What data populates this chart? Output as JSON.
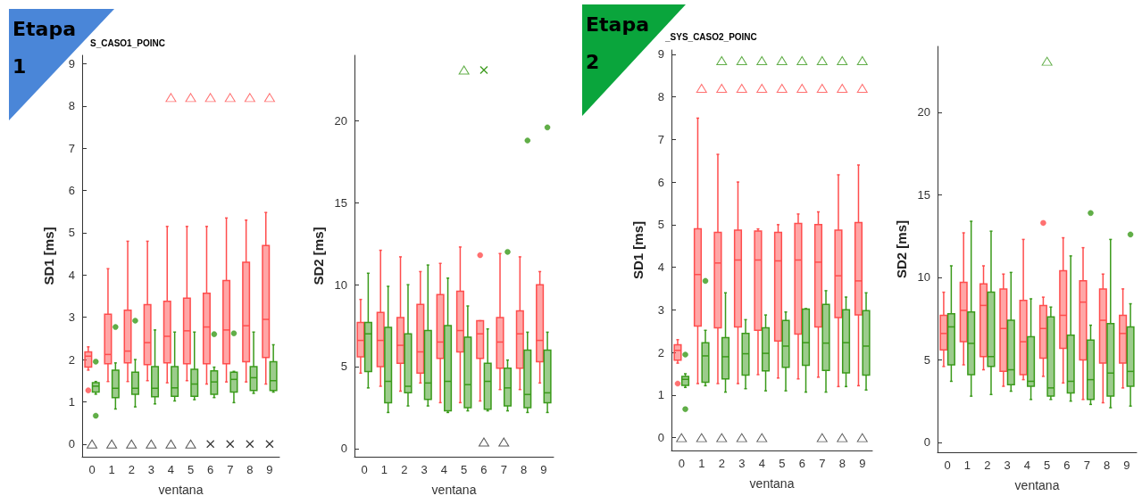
{
  "chart_data": [
    {
      "type": "box",
      "title": "S_CASO1_POINC",
      "annotations": [
        "Etapa 1"
      ],
      "xlabel": "ventana",
      "ylabel": "SD1 [ms]",
      "categories": [
        "0",
        "1",
        "2",
        "3",
        "4",
        "5",
        "6",
        "7",
        "8",
        "9"
      ],
      "ylim": [
        -0.3,
        9.2
      ],
      "yticks": [
        0,
        1,
        2,
        3,
        4,
        5,
        6,
        7,
        8,
        9
      ],
      "series": [
        {
          "color": "#ff4d4d",
          "boxes": [
            {
              "low": 1.75,
              "q1": 1.82,
              "median": 2.08,
              "q3": 2.18,
              "high": 2.3,
              "outliers": [
                1.27
              ]
            },
            {
              "low": 1.48,
              "q1": 1.9,
              "median": 2.12,
              "q3": 3.07,
              "high": 4.15
            },
            {
              "low": 1.48,
              "q1": 1.92,
              "median": 2.2,
              "q3": 3.17,
              "high": 4.8
            },
            {
              "low": 1.5,
              "q1": 1.88,
              "median": 2.4,
              "q3": 3.3,
              "high": 4.8
            },
            {
              "low": 1.45,
              "q1": 1.92,
              "median": 2.55,
              "q3": 3.38,
              "high": 5.15
            },
            {
              "low": 1.5,
              "q1": 1.9,
              "median": 2.68,
              "q3": 3.45,
              "high": 5.15
            },
            {
              "low": 1.42,
              "q1": 1.9,
              "median": 2.77,
              "q3": 3.57,
              "high": 5.15
            },
            {
              "low": 1.47,
              "q1": 1.9,
              "median": 2.7,
              "q3": 3.87,
              "high": 5.35
            },
            {
              "low": 1.47,
              "q1": 1.95,
              "median": 2.8,
              "q3": 4.3,
              "high": 5.3
            },
            {
              "low": 1.42,
              "q1": 2.05,
              "median": 2.95,
              "q3": 4.7,
              "high": 5.48
            }
          ]
        },
        {
          "color": "#3a9a1a",
          "boxes": [
            {
              "low": 1.18,
              "q1": 1.23,
              "median": 1.37,
              "q3": 1.45,
              "high": 1.48,
              "outliers": [
                1.95,
                0.67
              ]
            },
            {
              "low": 0.83,
              "q1": 1.1,
              "median": 1.32,
              "q3": 1.75,
              "high": 1.92,
              "outliers": [
                2.77
              ]
            },
            {
              "low": 0.88,
              "q1": 1.18,
              "median": 1.32,
              "q3": 1.7,
              "high": 2.0,
              "outliers": [
                2.92
              ]
            },
            {
              "low": 0.95,
              "q1": 1.12,
              "median": 1.32,
              "q3": 1.83,
              "high": 2.7
            },
            {
              "low": 1.02,
              "q1": 1.13,
              "median": 1.33,
              "q3": 1.83,
              "high": 2.65
            },
            {
              "low": 1.05,
              "q1": 1.13,
              "median": 1.42,
              "q3": 1.77,
              "high": 2.65
            },
            {
              "low": 1.1,
              "q1": 1.18,
              "median": 1.47,
              "q3": 1.73,
              "high": 1.82,
              "outliers": [
                2.6
              ]
            },
            {
              "low": 0.98,
              "q1": 1.23,
              "median": 1.53,
              "q3": 1.7,
              "high": 1.72,
              "outliers": [
                2.62
              ]
            },
            {
              "low": 1.2,
              "q1": 1.27,
              "median": 1.57,
              "q3": 1.83,
              "high": 2.65
            },
            {
              "low": 1.23,
              "q1": 1.27,
              "median": 1.5,
              "q3": 1.95,
              "high": 2.35
            }
          ]
        },
        {
          "type": "scatter",
          "marker": "triangle",
          "color": "#ff4d4d",
          "x": [
            "4",
            "5",
            "6",
            "7",
            "8",
            "9"
          ],
          "values": [
            8.2,
            8.2,
            8.2,
            8.2,
            8.2,
            8.2
          ]
        },
        {
          "type": "scatter",
          "marker": "triangle",
          "color": "#333333",
          "x": [
            "0",
            "1",
            "2",
            "3",
            "4",
            "5"
          ],
          "values": [
            0,
            0,
            0,
            0,
            0,
            0
          ]
        },
        {
          "type": "scatter",
          "marker": "cross",
          "color": "#333333",
          "x": [
            "6",
            "7",
            "8",
            "9"
          ],
          "values": [
            0,
            0,
            0,
            0
          ]
        }
      ]
    },
    {
      "type": "box",
      "xlabel": "ventana",
      "ylabel": "SD2 [ms]",
      "categories": [
        "0",
        "1",
        "2",
        "3",
        "4",
        "5",
        "6",
        "7",
        "8",
        "9"
      ],
      "ylim": [
        -0.5,
        24
      ],
      "yticks": [
        0,
        5,
        10,
        15,
        20
      ],
      "series": [
        {
          "color": "#ff4d4d",
          "boxes": [
            {
              "low": 4.6,
              "q1": 5.6,
              "median": 6.6,
              "q3": 7.7,
              "high": 9.1
            },
            {
              "low": 3.8,
              "q1": 5.0,
              "median": 6.6,
              "q3": 8.3,
              "high": 12.1
            },
            {
              "low": 3.5,
              "q1": 5.2,
              "median": 6.3,
              "q3": 8.0,
              "high": 11.7
            },
            {
              "low": 4.0,
              "q1": 4.6,
              "median": 5.9,
              "q3": 8.8,
              "high": 10.8
            },
            {
              "low": 2.8,
              "q1": 5.5,
              "median": 6.5,
              "q3": 9.4,
              "high": 11.3
            },
            {
              "low": 2.8,
              "q1": 5.9,
              "median": 7.2,
              "q3": 9.6,
              "high": 12.3
            },
            {
              "low": 2.9,
              "q1": 5.5,
              "median": 7.0,
              "q3": 7.8,
              "high": 7.8,
              "outliers": [
                11.8
              ]
            },
            {
              "low": 3.6,
              "q1": 4.9,
              "median": 6.5,
              "q3": 8.0,
              "high": 11.9
            },
            {
              "low": 3.6,
              "q1": 4.9,
              "median": 7.0,
              "q3": 8.4,
              "high": 11.7
            },
            {
              "low": 4.0,
              "q1": 5.3,
              "median": 6.6,
              "q3": 10.0,
              "high": 10.8
            }
          ]
        },
        {
          "color": "#3a9a1a",
          "boxes": [
            {
              "low": 3.7,
              "q1": 4.7,
              "median": 7.0,
              "q3": 7.7,
              "high": 10.7
            },
            {
              "low": 2.2,
              "q1": 2.8,
              "median": 4.1,
              "q3": 7.4,
              "high": 9.9
            },
            {
              "low": 2.6,
              "q1": 3.4,
              "median": 3.8,
              "q3": 7.0,
              "high": 10.0
            },
            {
              "low": 2.6,
              "q1": 3.0,
              "median": 4.0,
              "q3": 7.2,
              "high": 11.2
            },
            {
              "low": 2.2,
              "q1": 2.3,
              "median": 4.1,
              "q3": 7.5,
              "high": 10.4
            },
            {
              "low": 2.3,
              "q1": 2.5,
              "median": 3.9,
              "q3": 6.8,
              "high": 8.7
            },
            {
              "low": 2.3,
              "q1": 2.4,
              "median": 4.1,
              "q3": 5.2,
              "high": 7.3
            },
            {
              "low": 2.3,
              "q1": 2.6,
              "median": 3.7,
              "q3": 4.9,
              "high": 5.4,
              "outliers": [
                12.0
              ]
            },
            {
              "low": 2.2,
              "q1": 2.5,
              "median": 3.3,
              "q3": 6.0,
              "high": 7.1,
              "outliers": [
                18.8
              ]
            },
            {
              "low": 2.2,
              "q1": 2.8,
              "median": 3.4,
              "q3": 6.0,
              "high": 7.1,
              "outliers": [
                19.6
              ]
            }
          ]
        },
        {
          "type": "scatter",
          "marker": "triangle",
          "color": "#3a9a1a",
          "x": [
            "5"
          ],
          "values": [
            23.1
          ]
        },
        {
          "type": "scatter",
          "marker": "cross",
          "color": "#3a9a1a",
          "x": [
            "6"
          ],
          "values": [
            23.1
          ]
        },
        {
          "type": "scatter",
          "marker": "triangle",
          "color": "#333333",
          "x": [
            "6",
            "7"
          ],
          "values": [
            0.4,
            0.4
          ]
        }
      ]
    },
    {
      "type": "box",
      "title": "_SYS_CASO2_POINC",
      "annotations": [
        "Etapa 2"
      ],
      "xlabel": "ventana",
      "ylabel": "SD1 [ms]",
      "categories": [
        "0",
        "1",
        "2",
        "3",
        "4",
        "5",
        "6",
        "7",
        "8",
        "9"
      ],
      "ylim": [
        -0.3,
        9.1
      ],
      "yticks": [
        0,
        1,
        2,
        3,
        4,
        5,
        6,
        7,
        8,
        9
      ],
      "series": [
        {
          "color": "#ff4d4d",
          "boxes": [
            {
              "low": 1.75,
              "q1": 1.82,
              "median": 2.05,
              "q3": 2.18,
              "high": 2.3,
              "outliers": [
                1.27
              ]
            },
            {
              "low": 1.27,
              "q1": 2.62,
              "median": 3.83,
              "q3": 4.9,
              "high": 7.5
            },
            {
              "low": 1.27,
              "q1": 2.58,
              "median": 4.1,
              "q3": 4.82,
              "high": 6.65
            },
            {
              "low": 1.27,
              "q1": 2.6,
              "median": 4.17,
              "q3": 4.87,
              "high": 6.0
            },
            {
              "low": 1.48,
              "q1": 2.52,
              "median": 4.17,
              "q3": 4.85,
              "high": 4.9
            },
            {
              "low": 1.4,
              "q1": 2.27,
              "median": 4.15,
              "q3": 4.82,
              "high": 5.0
            },
            {
              "low": 1.38,
              "q1": 2.43,
              "median": 4.17,
              "q3": 5.03,
              "high": 5.25
            },
            {
              "low": 1.42,
              "q1": 2.6,
              "median": 4.12,
              "q3": 5.0,
              "high": 5.3
            },
            {
              "low": 1.2,
              "q1": 2.82,
              "median": 3.8,
              "q3": 4.87,
              "high": 6.17
            },
            {
              "low": 1.22,
              "q1": 2.88,
              "median": 3.68,
              "q3": 5.05,
              "high": 6.4
            }
          ]
        },
        {
          "color": "#3a9a1a",
          "boxes": [
            {
              "low": 1.18,
              "q1": 1.23,
              "median": 1.37,
              "q3": 1.44,
              "high": 1.5,
              "outliers": [
                1.95,
                0.67
              ]
            },
            {
              "low": 1.22,
              "q1": 1.3,
              "median": 1.92,
              "q3": 2.23,
              "high": 2.52,
              "outliers": [
                3.68
              ]
            },
            {
              "low": 1.07,
              "q1": 1.38,
              "median": 1.9,
              "q3": 2.35,
              "high": 3.4
            },
            {
              "low": 1.15,
              "q1": 1.47,
              "median": 1.97,
              "q3": 2.45,
              "high": 2.77
            },
            {
              "low": 1.1,
              "q1": 1.57,
              "median": 1.98,
              "q3": 2.58,
              "high": 2.88
            },
            {
              "low": 1.1,
              "q1": 1.65,
              "median": 2.15,
              "q3": 2.75,
              "high": 2.95
            },
            {
              "low": 1.07,
              "q1": 1.7,
              "median": 2.23,
              "q3": 3.02,
              "high": 3.03
            },
            {
              "low": 1.07,
              "q1": 1.58,
              "median": 2.22,
              "q3": 3.13,
              "high": 3.45
            },
            {
              "low": 1.2,
              "q1": 1.52,
              "median": 2.23,
              "q3": 3.0,
              "high": 3.3
            },
            {
              "low": 1.12,
              "q1": 1.47,
              "median": 2.15,
              "q3": 2.98,
              "high": 3.4
            }
          ]
        },
        {
          "type": "scatter",
          "marker": "triangle",
          "color": "#3a9a1a",
          "x": [
            "2",
            "3",
            "4",
            "5",
            "6",
            "7",
            "8",
            "9"
          ],
          "values": [
            8.85,
            8.85,
            8.85,
            8.85,
            8.85,
            8.85,
            8.85,
            8.85
          ]
        },
        {
          "type": "scatter",
          "marker": "triangle",
          "color": "#ff4d4d",
          "x": [
            "1",
            "2",
            "3",
            "4",
            "5",
            "6",
            "7",
            "8",
            "9"
          ],
          "values": [
            8.2,
            8.2,
            8.2,
            8.2,
            8.2,
            8.2,
            8.2,
            8.2,
            8.2
          ]
        },
        {
          "type": "scatter",
          "marker": "triangle",
          "color": "#333333",
          "x": [
            "0",
            "1",
            "2",
            "3",
            "4",
            "7",
            "8",
            "9"
          ],
          "values": [
            0,
            0,
            0,
            0,
            0,
            0,
            0,
            0
          ]
        }
      ]
    },
    {
      "type": "box",
      "xlabel": "ventana",
      "ylabel": "SD2 [ms]",
      "categories": [
        "0",
        "1",
        "2",
        "3",
        "4",
        "5",
        "6",
        "7",
        "8",
        "9"
      ],
      "ylim": [
        -0.6,
        24
      ],
      "yticks": [
        0,
        5,
        10,
        15,
        20
      ],
      "series": [
        {
          "color": "#ff4d4d",
          "boxes": [
            {
              "low": 4.6,
              "q1": 5.6,
              "median": 6.6,
              "q3": 7.7,
              "high": 9.1
            },
            {
              "low": 4.7,
              "q1": 6.1,
              "median": 8.0,
              "q3": 9.7,
              "high": 12.7
            },
            {
              "low": 4.4,
              "q1": 5.2,
              "median": 8.3,
              "q3": 9.6,
              "high": 10.7
            },
            {
              "low": 3.4,
              "q1": 4.3,
              "median": 6.9,
              "q3": 9.3,
              "high": 10.2
            },
            {
              "low": 3.8,
              "q1": 4.1,
              "median": 6.1,
              "q3": 8.6,
              "high": 12.3
            },
            {
              "low": 4.0,
              "q1": 5.1,
              "median": 6.9,
              "q3": 8.3,
              "high": 8.8,
              "outliers": [
                13.3
              ]
            },
            {
              "low": 3.6,
              "q1": 5.7,
              "median": 7.7,
              "q3": 10.4,
              "high": 12.4
            },
            {
              "low": 2.6,
              "q1": 5.0,
              "median": 8.5,
              "q3": 9.8,
              "high": 11.8
            },
            {
              "low": 2.4,
              "q1": 4.8,
              "median": 7.4,
              "q3": 9.3,
              "high": 10.2
            },
            {
              "low": 3.3,
              "q1": 4.8,
              "median": 6.6,
              "q3": 7.7,
              "high": 9.3
            }
          ]
        },
        {
          "color": "#3a9a1a",
          "boxes": [
            {
              "low": 3.7,
              "q1": 4.7,
              "median": 7.0,
              "q3": 7.8,
              "high": 10.7
            },
            {
              "low": 2.8,
              "q1": 4.1,
              "median": 6.0,
              "q3": 7.9,
              "high": 13.4
            },
            {
              "low": 2.9,
              "q1": 4.6,
              "median": 5.2,
              "q3": 9.1,
              "high": 12.8
            },
            {
              "low": 3.1,
              "q1": 3.5,
              "median": 4.4,
              "q3": 7.4,
              "high": 10.3
            },
            {
              "low": 2.6,
              "q1": 3.4,
              "median": 3.7,
              "q3": 6.4,
              "high": 8.7
            },
            {
              "low": 2.6,
              "q1": 2.8,
              "median": 3.3,
              "q3": 7.6,
              "high": 8.2
            },
            {
              "low": 2.5,
              "q1": 3.0,
              "median": 3.7,
              "q3": 6.5,
              "high": 11.3
            },
            {
              "low": 2.3,
              "q1": 2.6,
              "median": 3.8,
              "q3": 6.2,
              "high": 7.1,
              "outliers": [
                13.9
              ]
            },
            {
              "low": 2.1,
              "q1": 2.8,
              "median": 4.2,
              "q3": 7.2,
              "high": 12.3
            },
            {
              "low": 2.2,
              "q1": 3.4,
              "median": 4.3,
              "q3": 7.0,
              "high": 8.4,
              "outliers": [
                12.6
              ]
            }
          ]
        },
        {
          "type": "scatter",
          "marker": "triangle",
          "color": "#3a9a1a",
          "x": [
            "5"
          ],
          "values": [
            23.1
          ]
        }
      ]
    }
  ]
}
